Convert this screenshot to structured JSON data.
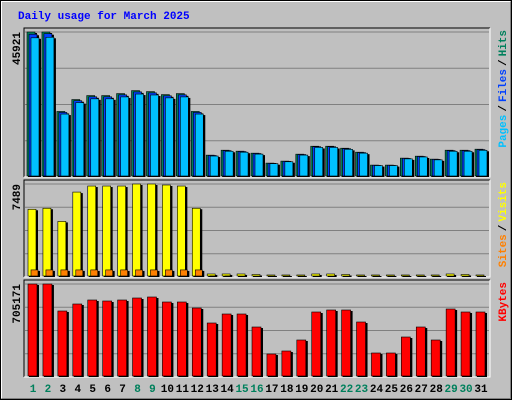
{
  "chart_data": [
    {
      "type": "bar",
      "title": "Daily usage for March 2025",
      "legend_separator": "/",
      "ylim": [
        0,
        45921
      ],
      "yticks": [
        45921
      ],
      "series": [
        {
          "name": "Pages",
          "color": "#00c0ff",
          "values": [
            44080,
            44250,
            19930,
            23550,
            24760,
            24760,
            25360,
            26270,
            25970,
            25060,
            25360,
            19930,
            6640,
            8150,
            7850,
            7250,
            4220,
            4830,
            6940,
            9360,
            9360,
            8760,
            7550,
            3620,
            3620,
            5740,
            6340,
            5430,
            8150,
            8150,
            8460
          ]
        },
        {
          "name": "Files",
          "color": "#0040ff",
          "values": [
            45210,
            45380,
            20450,
            24160,
            25400,
            25400,
            26020,
            26950,
            26640,
            25710,
            26020,
            20450,
            6820,
            8360,
            8060,
            7440,
            4330,
            4950,
            7120,
            9600,
            9600,
            8980,
            7740,
            3710,
            3710,
            5890,
            6500,
            5580,
            8360,
            8360,
            8680
          ]
        },
        {
          "name": "Hits",
          "color": "#00805c",
          "values": [
            45921,
            45921,
            20760,
            24530,
            25790,
            25790,
            26420,
            27360,
            27050,
            26100,
            26420,
            20760,
            6920,
            8490,
            8180,
            7550,
            4400,
            5030,
            7230,
            9750,
            9750,
            9120,
            7860,
            3770,
            3770,
            5980,
            6600,
            5660,
            8490,
            8490,
            8810
          ]
        }
      ]
    },
    {
      "type": "bar",
      "legend_separator": "/",
      "ylim": [
        0,
        7489
      ],
      "yticks": [
        7489
      ],
      "series": [
        {
          "name": "Sites",
          "color": "#ff8000",
          "values": [
            570,
            570,
            570,
            570,
            570,
            570,
            570,
            570,
            570,
            570,
            570,
            570,
            90,
            90,
            80,
            80,
            60,
            60,
            60,
            80,
            80,
            80,
            60,
            60,
            60,
            60,
            60,
            60,
            80,
            80,
            60
          ]
        },
        {
          "name": "Visits",
          "color": "#ffff00",
          "values": [
            5454,
            5536,
            4477,
            6838,
            7326,
            7326,
            7326,
            7489,
            7489,
            7408,
            7326,
            5536,
            244,
            244,
            244,
            200,
            163,
            163,
            163,
            244,
            244,
            200,
            163,
            163,
            163,
            163,
            163,
            163,
            244,
            200,
            163
          ]
        }
      ]
    },
    {
      "type": "bar",
      "ylim": [
        0,
        705171
      ],
      "yticks": [
        705171
      ],
      "categories": [
        "1",
        "2",
        "3",
        "4",
        "5",
        "6",
        "7",
        "8",
        "9",
        "10",
        "11",
        "12",
        "13",
        "14",
        "15",
        "16",
        "17",
        "18",
        "19",
        "20",
        "21",
        "22",
        "23",
        "24",
        "25",
        "26",
        "27",
        "28",
        "29",
        "30",
        "31"
      ],
      "category_colors": [
        "#00805c",
        "#00805c",
        "#000000",
        "#000000",
        "#000000",
        "#000000",
        "#000000",
        "#00805c",
        "#00805c",
        "#000000",
        "#000000",
        "#000000",
        "#000000",
        "#000000",
        "#00805c",
        "#00805c",
        "#000000",
        "#000000",
        "#000000",
        "#000000",
        "#000000",
        "#00805c",
        "#00805c",
        "#000000",
        "#000000",
        "#000000",
        "#000000",
        "#000000",
        "#00805c",
        "#00805c",
        "#000000"
      ],
      "series": [
        {
          "name": "KBytes",
          "color": "#ff0000",
          "values": [
            705171,
            705171,
            500444,
            553521,
            583850,
            576269,
            583850,
            599013,
            606595,
            568686,
            568686,
            523192,
            409454,
            477697,
            477697,
            379124,
            174397,
            197144,
            280552,
            492862,
            508027,
            508027,
            417036,
            181980,
            181980,
            303300,
            379124,
            280552,
            515609,
            492862,
            492862
          ]
        }
      ]
    }
  ]
}
